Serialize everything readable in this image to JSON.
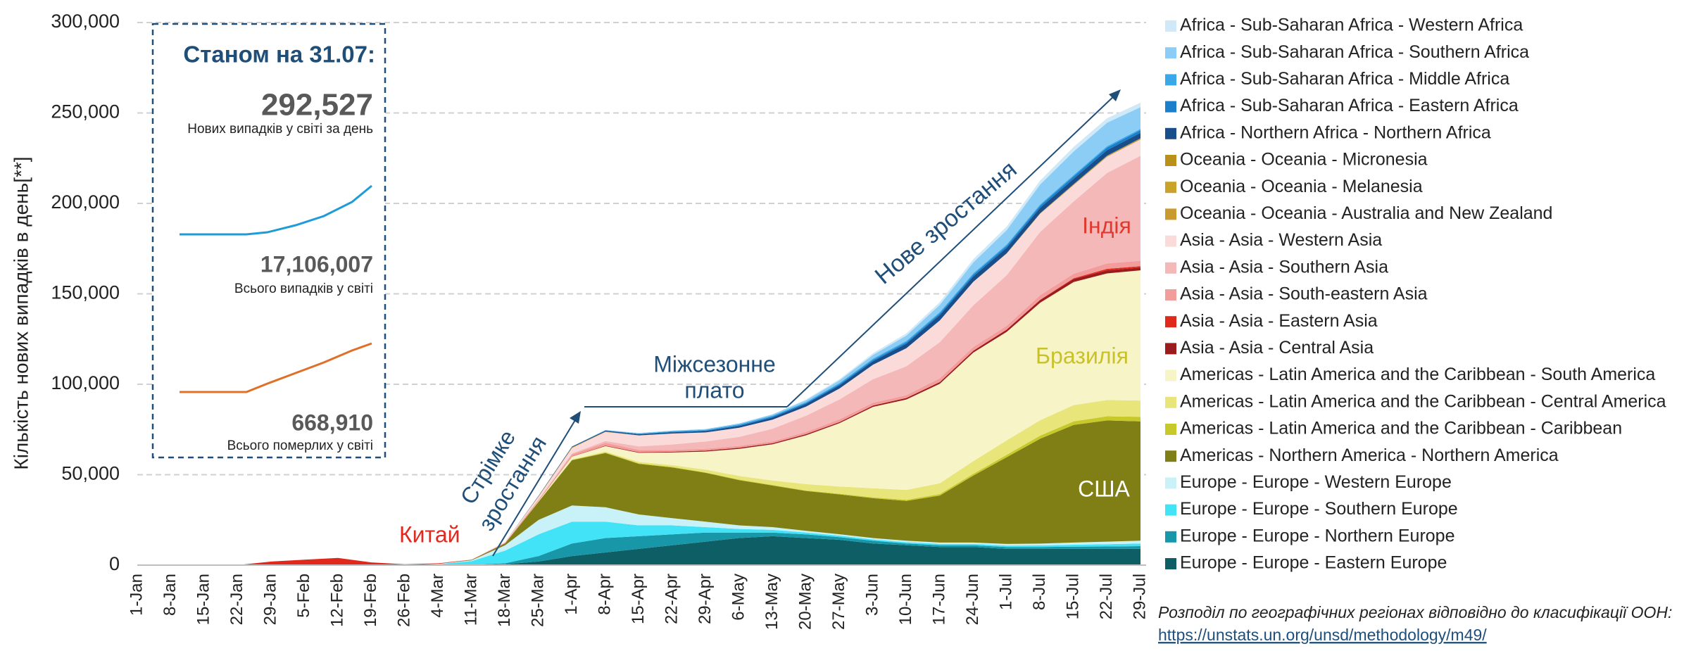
{
  "chart_data": {
    "type": "stacked_area",
    "y_label": "Кількість нових випадків в день[**]",
    "categories": [
      "1-Jan",
      "8-Jan",
      "15-Jan",
      "22-Jan",
      "29-Jan",
      "5-Feb",
      "12-Feb",
      "19-Feb",
      "26-Feb",
      "4-Mar",
      "11-Mar",
      "18-Mar",
      "25-Mar",
      "1-Apr",
      "8-Apr",
      "15-Apr",
      "22-Apr",
      "29-Apr",
      "6-May",
      "13-May",
      "20-May",
      "27-May",
      "3-Jun",
      "10-Jun",
      "17-Jun",
      "24-Jun",
      "1-Jul",
      "8-Jul",
      "15-Jul",
      "22-Jul",
      "29-Jul"
    ],
    "ylim": [
      0,
      300000
    ],
    "yticks": [
      0,
      {
        "value": 50000,
        "label": "50,000"
      },
      {
        "value": 100000,
        "label": "100,000"
      },
      {
        "value": 150000,
        "label": "150,000"
      },
      {
        "value": 200000,
        "label": "200,000"
      },
      {
        "value": 250000,
        "label": "250,000"
      },
      {
        "value": 300000,
        "label": "300,000"
      }
    ],
    "grid": true,
    "legend": "right",
    "series": [
      {
        "name": "Africa - Sub-Saharan Africa - Western Africa",
        "color": "#cfe9f8",
        "values": [
          0,
          0,
          0,
          0,
          0,
          0,
          0,
          0,
          0,
          0,
          0,
          0,
          0,
          0,
          0,
          0,
          0,
          0,
          0,
          0,
          500,
          700,
          1000,
          1200,
          1500,
          1800,
          2000,
          2200,
          2500,
          2500,
          2500
        ]
      },
      {
        "name": "Africa - Sub-Saharan Africa - Southern Africa",
        "color": "#8ccdf5",
        "values": [
          0,
          0,
          0,
          0,
          0,
          0,
          0,
          0,
          0,
          0,
          0,
          0,
          0,
          100,
          200,
          300,
          300,
          400,
          500,
          700,
          1000,
          1500,
          2000,
          3000,
          4000,
          6000,
          8000,
          11000,
          13000,
          13000,
          12000
        ]
      },
      {
        "name": "Africa - Sub-Saharan Africa - Middle Africa",
        "color": "#3aa8e8",
        "values": [
          0,
          0,
          0,
          0,
          0,
          0,
          0,
          0,
          0,
          0,
          0,
          0,
          0,
          0,
          100,
          200,
          300,
          400,
          500,
          500,
          500,
          600,
          700,
          700,
          700,
          700,
          700,
          700,
          700,
          700,
          700
        ]
      },
      {
        "name": "Africa - Sub-Saharan Africa - Eastern Africa",
        "color": "#1b7fc9",
        "values": [
          0,
          0,
          0,
          0,
          0,
          0,
          0,
          0,
          0,
          0,
          0,
          0,
          0,
          0,
          100,
          200,
          300,
          300,
          400,
          500,
          500,
          600,
          700,
          800,
          900,
          1000,
          1100,
          1200,
          1400,
          1500,
          1500
        ]
      },
      {
        "name": "Africa - Northern Africa - Northern Africa",
        "color": "#1a4e8a",
        "values": [
          0,
          0,
          0,
          0,
          0,
          0,
          0,
          0,
          0,
          0,
          0,
          0,
          200,
          400,
          500,
          600,
          700,
          800,
          1000,
          1200,
          1500,
          1800,
          2000,
          2500,
          3000,
          3000,
          3000,
          3000,
          3000,
          3000,
          3000
        ]
      },
      {
        "name": "Oceania - Oceania - Micronesia",
        "color": "#b8901a",
        "values": [
          0,
          0,
          0,
          0,
          0,
          0,
          0,
          0,
          0,
          0,
          0,
          0,
          0,
          0,
          0,
          0,
          0,
          0,
          0,
          0,
          0,
          0,
          0,
          0,
          0,
          0,
          0,
          0,
          0,
          0,
          0
        ]
      },
      {
        "name": "Oceania - Oceania - Melanesia",
        "color": "#c9a227",
        "values": [
          0,
          0,
          0,
          0,
          0,
          0,
          0,
          0,
          0,
          0,
          0,
          0,
          0,
          0,
          0,
          0,
          0,
          0,
          0,
          0,
          0,
          0,
          0,
          0,
          0,
          0,
          20,
          50,
          100,
          100,
          100
        ]
      },
      {
        "name": "Oceania - Oceania - Australia and New Zealand",
        "color": "#c99a2e",
        "values": [
          0,
          0,
          0,
          0,
          0,
          0,
          0,
          0,
          0,
          0,
          0,
          50,
          300,
          400,
          200,
          50,
          20,
          20,
          20,
          20,
          20,
          20,
          20,
          20,
          30,
          50,
          150,
          250,
          400,
          500,
          600
        ]
      },
      {
        "name": "Asia - Asia - Western Asia",
        "color": "#fbdada",
        "values": [
          0,
          0,
          0,
          0,
          0,
          0,
          0,
          0,
          0,
          0,
          0,
          300,
          1500,
          3000,
          5000,
          6000,
          6000,
          5000,
          5000,
          5000,
          5000,
          6000,
          8000,
          10000,
          12000,
          13000,
          12000,
          10000,
          9000,
          9000,
          9000
        ]
      },
      {
        "name": "Asia - Asia - Southern Asia",
        "color": "#f5b8b8",
        "values": [
          0,
          0,
          0,
          0,
          0,
          0,
          0,
          0,
          0,
          0,
          0,
          0,
          200,
          500,
          1000,
          2000,
          3000,
          4000,
          5000,
          7000,
          9000,
          11000,
          13000,
          16000,
          20000,
          23000,
          28000,
          35000,
          40000,
          50000,
          58000
        ]
      },
      {
        "name": "Asia - Asia - South-eastern Asia",
        "color": "#f39c9c",
        "values": [
          0,
          0,
          0,
          0,
          0,
          0,
          0,
          0,
          0,
          0,
          100,
          300,
          500,
          1000,
          1500,
          1200,
          1000,
          1000,
          1000,
          1000,
          1200,
          1500,
          1500,
          1500,
          2000,
          2000,
          2000,
          2500,
          2500,
          3000,
          3000
        ]
      },
      {
        "name": "Asia - Asia - Eastern Asia",
        "color": "#e0291c",
        "values": [
          0,
          0,
          0,
          50,
          2000,
          3000,
          4000,
          1500,
          500,
          300,
          100,
          100,
          150,
          150,
          150,
          100,
          50,
          50,
          50,
          50,
          50,
          50,
          50,
          50,
          100,
          100,
          100,
          150,
          400,
          800,
          800
        ]
      },
      {
        "name": "Asia - Asia - Central Asia",
        "color": "#9b1c1c",
        "values": [
          0,
          0,
          0,
          0,
          0,
          0,
          0,
          0,
          0,
          0,
          0,
          0,
          0,
          100,
          200,
          300,
          400,
          500,
          600,
          600,
          600,
          600,
          700,
          800,
          900,
          1000,
          1200,
          1500,
          1700,
          1700,
          1500
        ]
      },
      {
        "name": "Americas - Latin America and the Caribbean - South America",
        "color": "#f7f5c8",
        "values": [
          0,
          0,
          0,
          0,
          0,
          0,
          0,
          0,
          0,
          0,
          0,
          0,
          300,
          1500,
          3000,
          5000,
          7000,
          10000,
          15000,
          20000,
          27000,
          35000,
          45000,
          50000,
          55000,
          60000,
          60000,
          65000,
          68000,
          70000,
          72000
        ]
      },
      {
        "name": "Americas - Latin America and the Caribbean - Central America",
        "color": "#e8e67a",
        "values": [
          0,
          0,
          0,
          0,
          0,
          0,
          0,
          0,
          0,
          0,
          0,
          0,
          100,
          300,
          500,
          800,
          1000,
          1500,
          2000,
          2500,
          3500,
          4000,
          5000,
          5500,
          6000,
          7000,
          8000,
          8500,
          9000,
          9000,
          9000
        ]
      },
      {
        "name": "Americas - Latin America and the Caribbean - Caribbean",
        "color": "#c7c82a",
        "values": [
          0,
          0,
          0,
          0,
          0,
          0,
          0,
          0,
          0,
          0,
          0,
          0,
          100,
          200,
          300,
          300,
          300,
          300,
          300,
          300,
          300,
          400,
          500,
          600,
          800,
          1000,
          1300,
          1700,
          2000,
          2300,
          2500
        ]
      },
      {
        "name": "Americas - Northern America - Northern America",
        "color": "#7f7f16",
        "values": [
          0,
          0,
          0,
          0,
          0,
          0,
          0,
          0,
          0,
          0,
          200,
          1000,
          10000,
          25000,
          30000,
          28000,
          28000,
          27000,
          25000,
          23000,
          22000,
          22000,
          22000,
          22000,
          26000,
          37000,
          48000,
          58000,
          65000,
          67000,
          66000
        ]
      },
      {
        "name": "Europe - Europe - Western Europe",
        "color": "#c8f2f8",
        "values": [
          0,
          0,
          0,
          0,
          0,
          0,
          0,
          0,
          0,
          200,
          500,
          3000,
          8000,
          9000,
          8000,
          6000,
          4000,
          3000,
          2000,
          1500,
          1000,
          800,
          800,
          800,
          800,
          800,
          900,
          1000,
          1200,
          1400,
          1500
        ]
      },
      {
        "name": "Europe - Europe - Southern Europe",
        "color": "#42e2f7",
        "values": [
          0,
          0,
          0,
          0,
          0,
          0,
          0,
          0,
          0,
          500,
          2000,
          7000,
          12000,
          12000,
          9000,
          6000,
          5000,
          3000,
          2000,
          1500,
          1000,
          800,
          700,
          700,
          700,
          700,
          800,
          900,
          1100,
          1300,
          1500
        ]
      },
      {
        "name": "Europe - Europe - Northern Europe",
        "color": "#1897a8",
        "values": [
          0,
          0,
          0,
          0,
          0,
          0,
          0,
          0,
          0,
          0,
          100,
          500,
          3000,
          7000,
          8000,
          7000,
          6000,
          5000,
          3000,
          2000,
          2000,
          1500,
          1500,
          1000,
          1000,
          1000,
          1000,
          1000,
          1200,
          1300,
          1500
        ]
      },
      {
        "name": "Europe - Europe - Eastern Europe",
        "color": "#0e5e66",
        "values": [
          0,
          0,
          0,
          0,
          0,
          0,
          0,
          0,
          0,
          0,
          100,
          500,
          2000,
          5000,
          7000,
          9000,
          11000,
          13000,
          15000,
          16000,
          15000,
          14000,
          12000,
          11000,
          10000,
          10000,
          9000,
          9000,
          9000,
          9000,
          9000
        ]
      }
    ],
    "annotations": {
      "china": "Китай",
      "rapid": [
        "Стрімке",
        "зростання"
      ],
      "plateau": [
        "Міжсезонне",
        "плато"
      ],
      "new_growth": "Нове зростання",
      "india": "Індія",
      "brazil": "Бразилія",
      "usa": "США"
    },
    "inset": {
      "title": "Станом на 31.07:",
      "daily": "292,527",
      "daily_label": "Нових випадків у світі за день",
      "total": "17,106,007",
      "total_label": "Всього випадків у світі",
      "deaths": "668,910",
      "deaths_label": "Всього померлих у світі"
    },
    "footnote": "Розподіл по географічних регіонах відповідно до класифікації ООН:",
    "footnote_link": "https://unstats.un.org/unsd/methodology/m49/"
  }
}
